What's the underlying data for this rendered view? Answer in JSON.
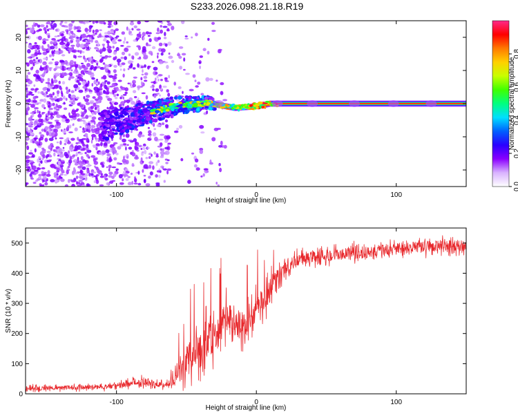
{
  "page": {
    "title": "S233.2026.098.21.18.R19"
  },
  "colors": {
    "line": "#e8282c",
    "axis": "#000000"
  },
  "chart_data": [
    {
      "id": "spectrogram",
      "type": "heatmap",
      "title": "S233.2026.098.21.18.R19",
      "xlabel": "Height of straight line (km)",
      "ylabel": "Frequency (Hz)",
      "xlim": [
        -165,
        150
      ],
      "ylim": [
        -25,
        25
      ],
      "xticks": [
        -100,
        0,
        100
      ],
      "yticks": [
        -20,
        -10,
        0,
        10,
        20
      ],
      "colorbar": {
        "label": "Normalized spectral amplitude",
        "range": [
          0,
          1
        ],
        "ticks": [
          "0.0",
          "0.2",
          "0.4",
          "0.6",
          "0.8"
        ],
        "palette": [
          "#ffffff",
          "#d9b3ff",
          "#8a00ff",
          "#2a00ff",
          "#0060ff",
          "#00dfff",
          "#00ff80",
          "#40ff00",
          "#c8ff00",
          "#ffd000",
          "#ff7a00",
          "#ff0000",
          "#ff2a8a"
        ]
      },
      "ridge": [
        {
          "x": -105,
          "f": -6.5
        },
        {
          "x": -80,
          "f": -3
        },
        {
          "x": -55,
          "f": -0.5
        },
        {
          "x": -35,
          "f": 0.2
        },
        {
          "x": -15,
          "f": -1.3
        },
        {
          "x": 0,
          "f": -0.8
        },
        {
          "x": 10,
          "f": 0
        },
        {
          "x": 150,
          "f": 0
        }
      ]
    },
    {
      "id": "snr",
      "type": "line",
      "xlabel": "Height of straight line (km)",
      "ylabel": "SNR (10 * v/v)",
      "xlim": [
        -165,
        150
      ],
      "ylim": [
        0,
        550
      ],
      "xticks": [
        -100,
        0,
        100
      ],
      "yticks": [
        0,
        100,
        200,
        300,
        400,
        500
      ],
      "series": [
        {
          "name": "SNR",
          "x": [
            -165,
            -140,
            -120,
            -100,
            -90,
            -80,
            -70,
            -65,
            -60,
            -55,
            -50,
            -45,
            -40,
            -35,
            -30,
            -25,
            -20,
            -15,
            -10,
            -5,
            0,
            5,
            10,
            15,
            20,
            25,
            30,
            40,
            50,
            60,
            70,
            80,
            90,
            100,
            110,
            120,
            130,
            140,
            150
          ],
          "values": [
            18,
            20,
            22,
            25,
            35,
            42,
            30,
            28,
            40,
            70,
            110,
            140,
            150,
            170,
            190,
            220,
            250,
            240,
            230,
            250,
            290,
            310,
            345,
            380,
            410,
            430,
            445,
            455,
            460,
            462,
            468,
            470,
            475,
            480,
            485,
            488,
            490,
            490,
            490
          ],
          "noise": [
            10,
            10,
            10,
            12,
            15,
            18,
            15,
            12,
            20,
            50,
            70,
            80,
            90,
            90,
            85,
            80,
            80,
            80,
            70,
            70,
            65,
            60,
            55,
            45,
            35,
            30,
            28,
            28,
            28,
            28,
            28,
            28,
            28,
            28,
            28,
            28,
            28,
            28,
            28
          ]
        }
      ]
    }
  ]
}
